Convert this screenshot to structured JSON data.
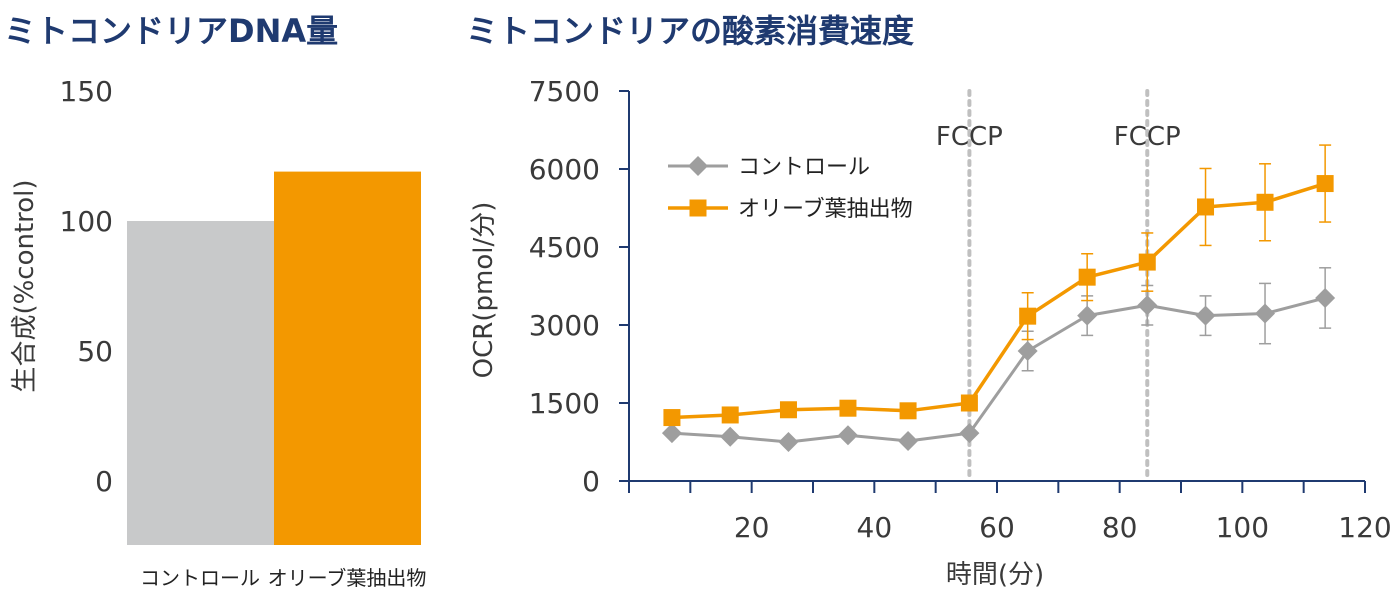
{
  "titles": {
    "left": "ミトコンドリアDNA量",
    "right": "ミトコンドリアの酸素消費速度"
  },
  "colors": {
    "title": "#1f3a70",
    "control": "#9e9e9e",
    "control_bar": "#c8c9ca",
    "olive": "#f39800",
    "axis": "#1f3a70",
    "text": "#3a3a3a",
    "fccp_line": "#c0c0c0"
  },
  "chart_data": [
    {
      "type": "bar",
      "title": "ミトコンドリアDNA量",
      "ylabel": "生合成(%control)",
      "ylim": [
        0,
        150
      ],
      "yticks": [
        "150",
        "100",
        "50",
        "0"
      ],
      "categories": [
        "コントロール",
        "オリーブ葉抽出物"
      ],
      "values": [
        100,
        119
      ]
    },
    {
      "type": "line",
      "title": "ミトコンドリアの酸素消費速度",
      "xlabel": "時間(分)",
      "ylabel": "OCR(pmol/分)",
      "xlim": [
        0,
        120
      ],
      "ylim": [
        0,
        7500
      ],
      "xticks": [
        "20",
        "40",
        "60",
        "80",
        "100",
        "120"
      ],
      "yticks": [
        "7500",
        "6000",
        "4500",
        "3000",
        "1500",
        "0"
      ],
      "legend_position": "top-left",
      "annotations": [
        {
          "x": 55.5,
          "label": "FCCP"
        },
        {
          "x": 84.5,
          "label": "FCCP"
        }
      ],
      "series": [
        {
          "name": "コントロール",
          "marker": "diamond",
          "x": [
            7,
            16.5,
            26,
            35.7,
            45.5,
            55.5,
            65,
            74.7,
            84.5,
            94,
            103.7,
            113.5
          ],
          "y": [
            920,
            850,
            750,
            880,
            770,
            920,
            2500,
            3180,
            3380,
            3180,
            3220,
            3520
          ],
          "err": [
            0,
            0,
            0,
            0,
            0,
            0,
            380,
            380,
            380,
            380,
            580,
            580
          ]
        },
        {
          "name": "オリーブ葉抽出物",
          "marker": "square",
          "x": [
            7,
            16.5,
            26,
            35.7,
            45.5,
            55.5,
            65,
            74.7,
            84.5,
            94,
            103.7,
            113.5
          ],
          "y": [
            1220,
            1270,
            1370,
            1400,
            1350,
            1500,
            3170,
            3920,
            4210,
            5270,
            5360,
            5720
          ],
          "err": [
            0,
            0,
            0,
            0,
            0,
            0,
            450,
            450,
            560,
            740,
            740,
            740
          ]
        }
      ]
    }
  ]
}
